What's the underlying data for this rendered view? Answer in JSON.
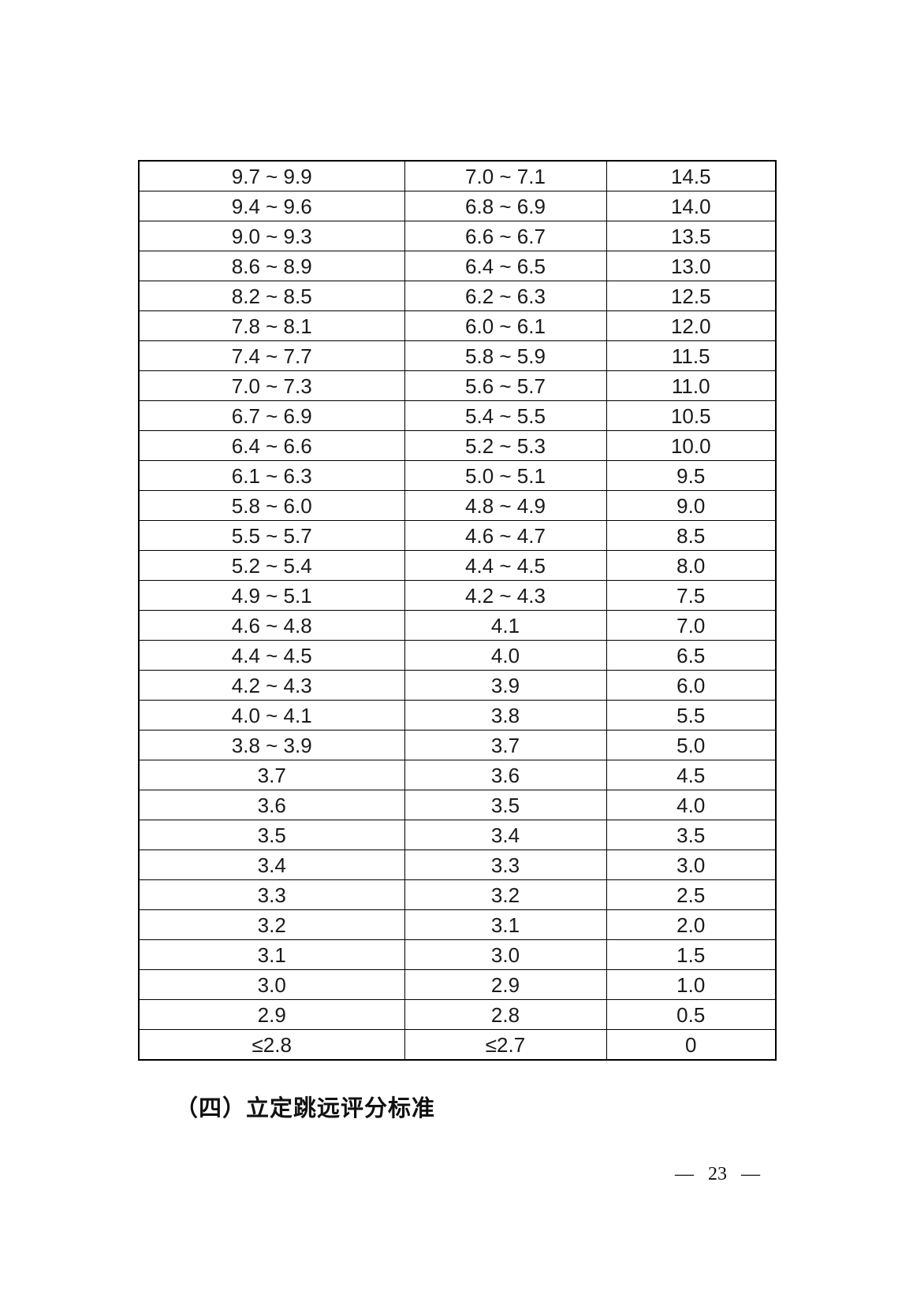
{
  "section": {
    "heading": "（四）立定跳远评分标准"
  },
  "footer": {
    "page_number": "— 23 —"
  },
  "table": {
    "rows": [
      [
        "9.7 ~ 9.9",
        "7.0 ~ 7.1",
        "14.5"
      ],
      [
        "9.4 ~ 9.6",
        "6.8 ~ 6.9",
        "14.0"
      ],
      [
        "9.0 ~ 9.3",
        "6.6 ~ 6.7",
        "13.5"
      ],
      [
        "8.6 ~ 8.9",
        "6.4 ~ 6.5",
        "13.0"
      ],
      [
        "8.2 ~ 8.5",
        "6.2 ~ 6.3",
        "12.5"
      ],
      [
        "7.8 ~ 8.1",
        "6.0 ~ 6.1",
        "12.0"
      ],
      [
        "7.4 ~ 7.7",
        "5.8 ~ 5.9",
        "11.5"
      ],
      [
        "7.0 ~ 7.3",
        "5.6 ~ 5.7",
        "11.0"
      ],
      [
        "6.7 ~ 6.9",
        "5.4 ~ 5.5",
        "10.5"
      ],
      [
        "6.4 ~ 6.6",
        "5.2 ~ 5.3",
        "10.0"
      ],
      [
        "6.1 ~ 6.3",
        "5.0 ~ 5.1",
        "9.5"
      ],
      [
        "5.8 ~ 6.0",
        "4.8 ~ 4.9",
        "9.0"
      ],
      [
        "5.5 ~ 5.7",
        "4.6 ~ 4.7",
        "8.5"
      ],
      [
        "5.2 ~ 5.4",
        "4.4 ~ 4.5",
        "8.0"
      ],
      [
        "4.9 ~ 5.1",
        "4.2 ~ 4.3",
        "7.5"
      ],
      [
        "4.6 ~ 4.8",
        "4.1",
        "7.0"
      ],
      [
        "4.4 ~ 4.5",
        "4.0",
        "6.5"
      ],
      [
        "4.2 ~ 4.3",
        "3.9",
        "6.0"
      ],
      [
        "4.0 ~ 4.1",
        "3.8",
        "5.5"
      ],
      [
        "3.8 ~ 3.9",
        "3.7",
        "5.0"
      ],
      [
        "3.7",
        "3.6",
        "4.5"
      ],
      [
        "3.6",
        "3.5",
        "4.0"
      ],
      [
        "3.5",
        "3.4",
        "3.5"
      ],
      [
        "3.4",
        "3.3",
        "3.0"
      ],
      [
        "3.3",
        "3.2",
        "2.5"
      ],
      [
        "3.2",
        "3.1",
        "2.0"
      ],
      [
        "3.1",
        "3.0",
        "1.5"
      ],
      [
        "3.0",
        "2.9",
        "1.0"
      ],
      [
        "2.9",
        "2.8",
        "0.5"
      ],
      [
        "≤2.8",
        "≤2.7",
        "0"
      ]
    ]
  }
}
